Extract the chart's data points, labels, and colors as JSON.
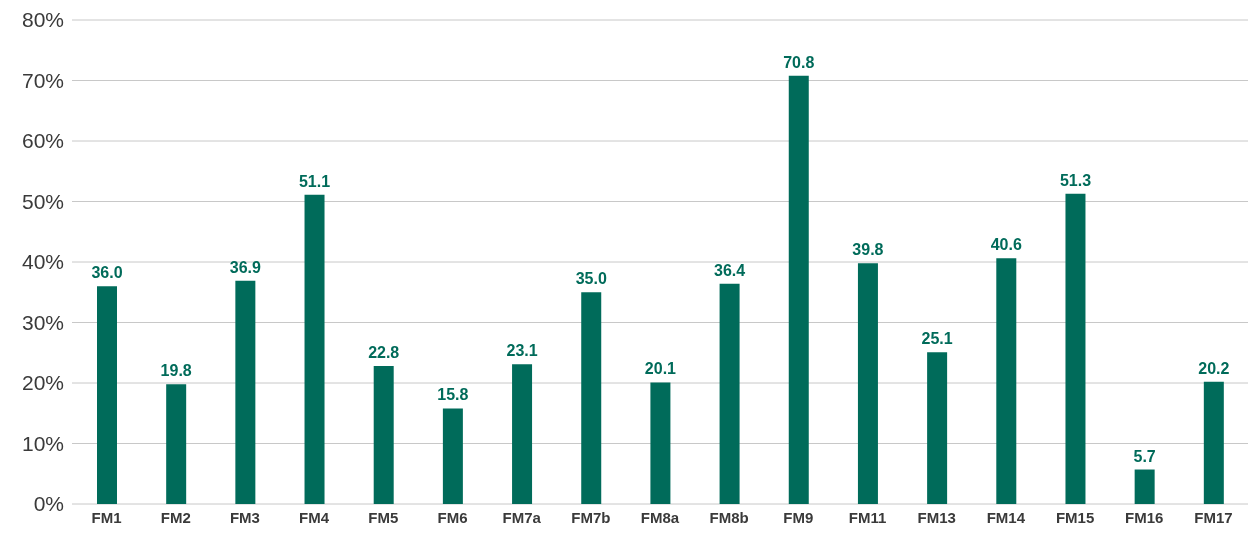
{
  "chart_data": {
    "type": "bar",
    "categories": [
      "FM1",
      "FM2",
      "FM3",
      "FM4",
      "FM5",
      "FM6",
      "FM7a",
      "FM7b",
      "FM8a",
      "FM8b",
      "FM9",
      "FM11",
      "FM13",
      "FM14",
      "FM15",
      "FM16",
      "FM17"
    ],
    "values": [
      36.0,
      19.8,
      36.9,
      51.1,
      22.8,
      15.8,
      23.1,
      35.0,
      20.1,
      36.4,
      70.8,
      39.8,
      25.1,
      40.6,
      51.3,
      5.7,
      20.2
    ],
    "value_labels": [
      "36.0",
      "19.8",
      "36.9",
      "51.1",
      "22.8",
      "15.8",
      "23.1",
      "35.0",
      "20.1",
      "36.4",
      "70.8",
      "39.8",
      "25.1",
      "40.6",
      "51.3",
      "5.7",
      "20.2"
    ],
    "color": "#006b5a",
    "ylim": [
      0,
      80
    ],
    "yticks": [
      {
        "value": 0,
        "label": "0%"
      },
      {
        "value": 10,
        "label": "10%"
      },
      {
        "value": 20,
        "label": "20%"
      },
      {
        "value": 30,
        "label": "30%"
      },
      {
        "value": 40,
        "label": "40%"
      },
      {
        "value": 50,
        "label": "50%"
      },
      {
        "value": 60,
        "label": "60%"
      },
      {
        "value": 70,
        "label": "70%"
      },
      {
        "value": 80,
        "label": "80%"
      }
    ],
    "grid": "y"
  }
}
